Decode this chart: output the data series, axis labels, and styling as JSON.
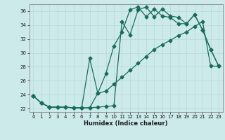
{
  "xlabel": "Humidex (Indice chaleur)",
  "bg_color": "#cdeaea",
  "line_color": "#1a6b5a",
  "grid_color": "#b8d8d8",
  "xlim": [
    -0.5,
    23.5
  ],
  "ylim": [
    21.5,
    37.0
  ],
  "yticks": [
    22,
    24,
    26,
    28,
    30,
    32,
    34,
    36
  ],
  "xticks": [
    0,
    1,
    2,
    3,
    4,
    5,
    6,
    7,
    8,
    9,
    10,
    11,
    12,
    13,
    14,
    15,
    16,
    17,
    18,
    19,
    20,
    21,
    22,
    23
  ],
  "line1_x": [
    0,
    1,
    2,
    3,
    4,
    5,
    6,
    7,
    8,
    9,
    10,
    11,
    12,
    13,
    14,
    15,
    16,
    17,
    18,
    19,
    20,
    21,
    22,
    23
  ],
  "line1_y": [
    23.8,
    22.8,
    22.2,
    22.2,
    22.2,
    22.1,
    22.1,
    22.1,
    22.2,
    22.3,
    22.4,
    34.5,
    32.6,
    36.2,
    36.6,
    35.2,
    36.3,
    35.3,
    35.1,
    34.2,
    35.5,
    33.3,
    30.5,
    28.1
  ],
  "line2_x": [
    0,
    1,
    2,
    3,
    4,
    5,
    6,
    7,
    8,
    9,
    10,
    11,
    12,
    13,
    14,
    15,
    16,
    17,
    18,
    19,
    20,
    21,
    22,
    23
  ],
  "line2_y": [
    23.8,
    22.8,
    22.2,
    22.2,
    22.2,
    22.1,
    22.1,
    29.2,
    24.2,
    27.0,
    31.0,
    33.0,
    36.2,
    36.6,
    35.2,
    36.3,
    35.3,
    35.1,
    34.2,
    34.2,
    35.5,
    33.3,
    30.5,
    28.1
  ],
  "line3_x": [
    0,
    1,
    2,
    3,
    4,
    5,
    6,
    7,
    8,
    9,
    10,
    11,
    12,
    13,
    14,
    15,
    16,
    17,
    18,
    19,
    20,
    21,
    22,
    23
  ],
  "line3_y": [
    23.8,
    22.8,
    22.2,
    22.2,
    22.2,
    22.1,
    22.1,
    22.1,
    24.2,
    24.5,
    25.5,
    26.5,
    27.5,
    28.5,
    29.5,
    30.5,
    31.2,
    31.8,
    32.5,
    33.0,
    33.8,
    34.5,
    28.1,
    28.1
  ]
}
